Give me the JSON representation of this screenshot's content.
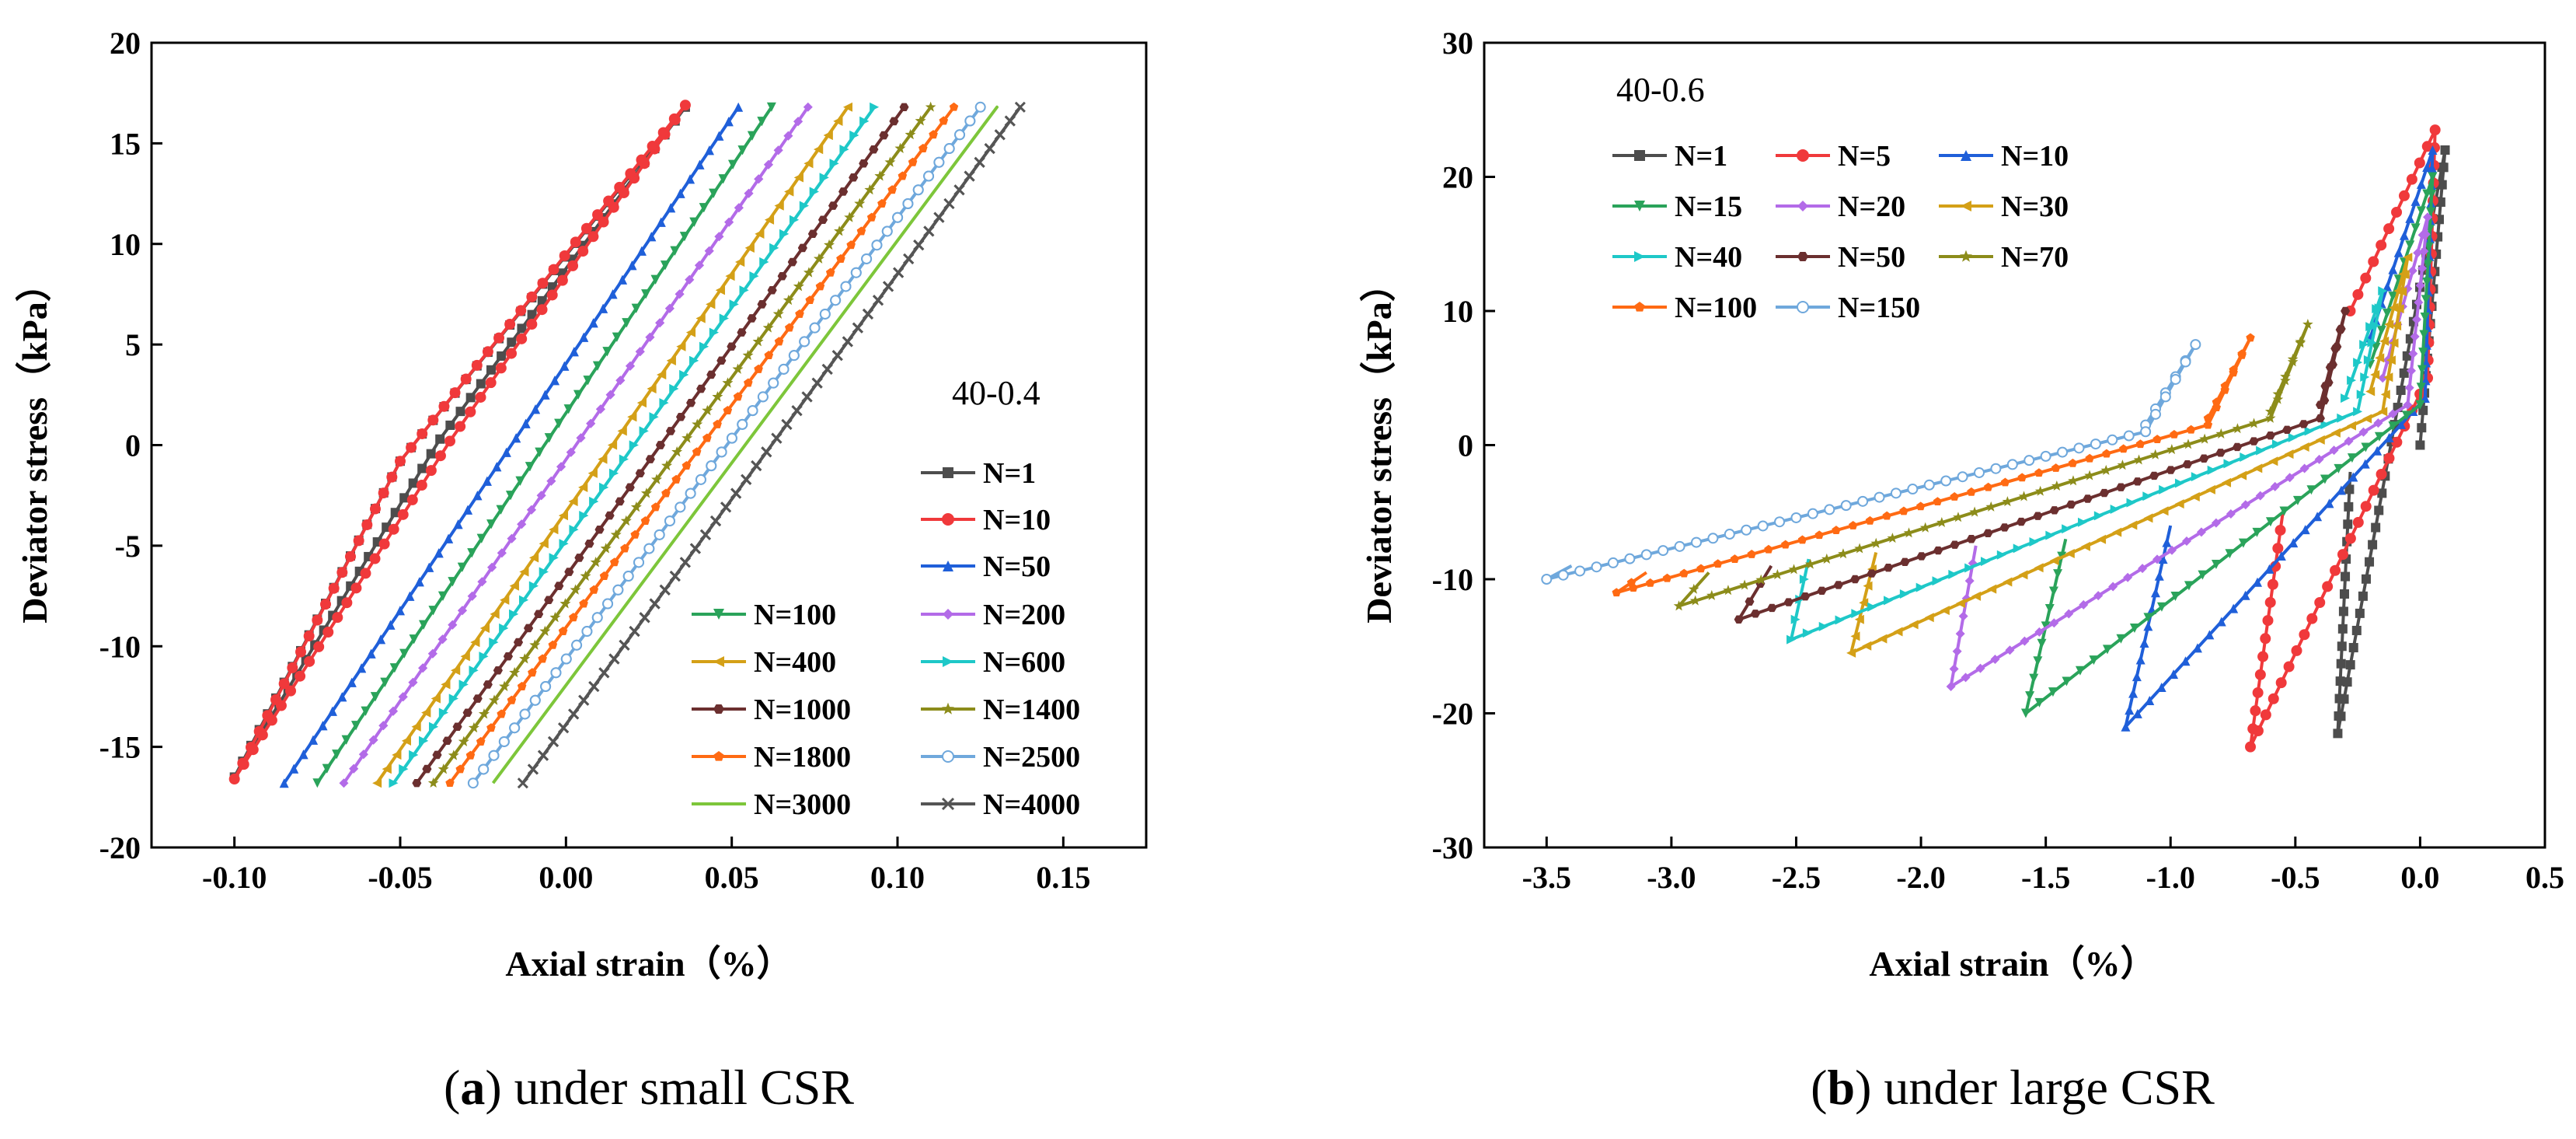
{
  "chart_data": [
    {
      "type": "line",
      "panel_letter": "a",
      "caption_text": " under small CSR",
      "annotation": "40-0.4",
      "xlabel": "Axial strain（%）",
      "ylabel": "Deviator stress（kPa）",
      "xlim": [
        -0.125,
        0.175
      ],
      "ylim": [
        -20,
        20
      ],
      "xticks": [
        -0.1,
        -0.05,
        0.0,
        0.05,
        0.1,
        0.15
      ],
      "xtick_labels": [
        "-0.10",
        "-0.05",
        "0.00",
        "0.05",
        "0.10",
        "0.15"
      ],
      "yticks": [
        -20,
        -15,
        -10,
        -5,
        0,
        5,
        10,
        15,
        20
      ],
      "ytick_labels": [
        "-20",
        "-15",
        "-10",
        "-5",
        "0",
        "5",
        "10",
        "15",
        "20"
      ],
      "legend_position": "lower-right",
      "series": [
        {
          "name": "N=1",
          "color": "#4d4d4d",
          "marker": "square",
          "x": [
            -0.05,
            -0.1,
            -0.038,
            0.036,
            -0.05
          ],
          "y": [
            -0.8,
            -16.5,
            0.3,
            16.8,
            -0.8
          ]
        },
        {
          "name": "N=10",
          "color": "#f0393b",
          "marker": "circle",
          "x": [
            -0.05,
            -0.1,
            -0.035,
            0.036,
            -0.05
          ],
          "y": [
            -0.8,
            -16.6,
            0.2,
            16.9,
            -0.8
          ]
        },
        {
          "name": "N=50",
          "color": "#1f5fd9",
          "marker": "triangle",
          "x": [
            -0.085,
            0.052,
            -0.085
          ],
          "y": [
            -16.8,
            16.8,
            -16.8
          ]
        },
        {
          "name": "N=100",
          "color": "#2aa35a",
          "marker": "invtriangle",
          "x": [
            -0.075,
            0.062,
            -0.075
          ],
          "y": [
            -16.8,
            16.8,
            -16.8
          ]
        },
        {
          "name": "N=200",
          "color": "#b36be8",
          "marker": "diamond",
          "x": [
            -0.067,
            0.073,
            -0.067
          ],
          "y": [
            -16.8,
            16.8,
            -16.8
          ]
        },
        {
          "name": "N=400",
          "color": "#d4a017",
          "marker": "left",
          "x": [
            -0.057,
            0.085,
            -0.057
          ],
          "y": [
            -16.8,
            16.8,
            -16.8
          ]
        },
        {
          "name": "N=600",
          "color": "#1ec8c8",
          "marker": "right",
          "x": [
            -0.052,
            0.093,
            -0.052
          ],
          "y": [
            -16.8,
            16.8,
            -16.8
          ]
        },
        {
          "name": "N=1000",
          "color": "#6b2f2f",
          "marker": "hexagon",
          "x": [
            -0.045,
            0.102,
            -0.045
          ],
          "y": [
            -16.8,
            16.8,
            -16.8
          ]
        },
        {
          "name": "N=1400",
          "color": "#8c8c1a",
          "marker": "star",
          "x": [
            -0.04,
            0.11,
            -0.04
          ],
          "y": [
            -16.8,
            16.8,
            -16.8
          ]
        },
        {
          "name": "N=1800",
          "color": "#ff6a13",
          "marker": "pentagon",
          "x": [
            -0.035,
            0.117,
            -0.035
          ],
          "y": [
            -16.8,
            16.8,
            -16.8
          ]
        },
        {
          "name": "N=2500",
          "color": "#6fa8dc",
          "marker": "circle-open",
          "x": [
            -0.028,
            0.125,
            -0.028
          ],
          "y": [
            -16.8,
            16.8,
            -16.8
          ]
        },
        {
          "name": "N=3000",
          "color": "#7dc63a",
          "marker": "none",
          "x": [
            -0.022,
            0.13,
            -0.022
          ],
          "y": [
            -16.8,
            16.8,
            -16.8
          ]
        },
        {
          "name": "N=4000",
          "color": "#555555",
          "marker": "cross",
          "x": [
            -0.013,
            0.137,
            -0.013
          ],
          "y": [
            -16.8,
            16.8,
            -16.8
          ]
        }
      ]
    },
    {
      "type": "line",
      "panel_letter": "b",
      "caption_text": " under large CSR",
      "annotation": "40-0.6",
      "xlabel": "Axial strain（%）",
      "ylabel": "Deviator stress（kPa）",
      "xlim": [
        -3.75,
        0.5
      ],
      "ylim": [
        -30,
        30
      ],
      "xticks": [
        -3.5,
        -3.0,
        -2.5,
        -2.0,
        -1.5,
        -1.0,
        -0.5,
        0.0,
        0.5
      ],
      "xtick_labels": [
        "-3.5",
        "-3.0",
        "-2.5",
        "-2.0",
        "-1.5",
        "-1.0",
        "-0.5",
        "0.0",
        "0.5"
      ],
      "yticks": [
        -30,
        -20,
        -10,
        0,
        10,
        20,
        30
      ],
      "ytick_labels": [
        "-30",
        "-20",
        "-10",
        "0",
        "10",
        "20",
        "30"
      ],
      "legend_position": "top-left",
      "series": [
        {
          "name": "N=1",
          "color": "#4d4d4d",
          "marker": "square",
          "x": [
            0.0,
            0.1,
            -0.33,
            -0.28
          ],
          "y": [
            0.0,
            22.0,
            -21.5,
            -2.0
          ]
        },
        {
          "name": "N=5",
          "color": "#f0393b",
          "marker": "circle",
          "x": [
            -0.28,
            0.06,
            0.03,
            -0.68,
            -0.55
          ],
          "y": [
            10.0,
            23.5,
            5.0,
            -22.5,
            -5.0
          ]
        },
        {
          "name": "N=10",
          "color": "#1f5fd9",
          "marker": "triangle",
          "x": [
            -0.2,
            0.05,
            0.02,
            -1.18,
            -1.0
          ],
          "y": [
            8.0,
            22.0,
            3.5,
            -21.0,
            -6.0
          ]
        },
        {
          "name": "N=15",
          "color": "#2aa35a",
          "marker": "invtriangle",
          "x": [
            -0.2,
            0.05,
            0.0,
            -1.58,
            -1.42
          ],
          "y": [
            6.0,
            20.0,
            3.0,
            -20.0,
            -7.0
          ]
        },
        {
          "name": "N=20",
          "color": "#b36be8",
          "marker": "diamond",
          "x": [
            -0.15,
            0.03,
            -0.05,
            -1.88,
            -1.78
          ],
          "y": [
            5.0,
            17.0,
            3.0,
            -18.0,
            -7.5
          ]
        },
        {
          "name": "N=30",
          "color": "#d4a017",
          "marker": "left",
          "x": [
            -0.2,
            -0.05,
            -0.15,
            -2.28,
            -2.18
          ],
          "y": [
            4.0,
            14.0,
            2.5,
            -15.5,
            -8.0
          ]
        },
        {
          "name": "N=40",
          "color": "#1ec8c8",
          "marker": "right",
          "x": [
            -0.3,
            -0.15,
            -0.25,
            -2.52,
            -2.45
          ],
          "y": [
            3.5,
            11.5,
            2.5,
            -14.5,
            -8.5
          ]
        },
        {
          "name": "N=50",
          "color": "#6b2f2f",
          "marker": "hexagon",
          "x": [
            -0.4,
            -0.3,
            -0.4,
            -2.73,
            -2.6
          ],
          "y": [
            3.0,
            10.0,
            2.0,
            -13.0,
            -9.0
          ]
        },
        {
          "name": "N=70",
          "color": "#8c8c1a",
          "marker": "star",
          "x": [
            -0.6,
            -0.45,
            -0.6,
            -2.97,
            -2.85
          ],
          "y": [
            2.5,
            9.0,
            2.0,
            -12.0,
            -9.5
          ]
        },
        {
          "name": "N=100",
          "color": "#ff6a13",
          "marker": "pentagon",
          "x": [
            -0.85,
            -0.68,
            -0.85,
            -3.22,
            -3.1
          ],
          "y": [
            2.0,
            8.0,
            1.5,
            -11.0,
            -9.5
          ]
        },
        {
          "name": "N=150",
          "color": "#6fa8dc",
          "marker": "circle-open",
          "x": [
            -1.1,
            -0.9,
            -1.1,
            -3.5,
            -3.4
          ],
          "y": [
            1.5,
            7.5,
            1.0,
            -10.0,
            -9.0
          ]
        }
      ]
    }
  ]
}
